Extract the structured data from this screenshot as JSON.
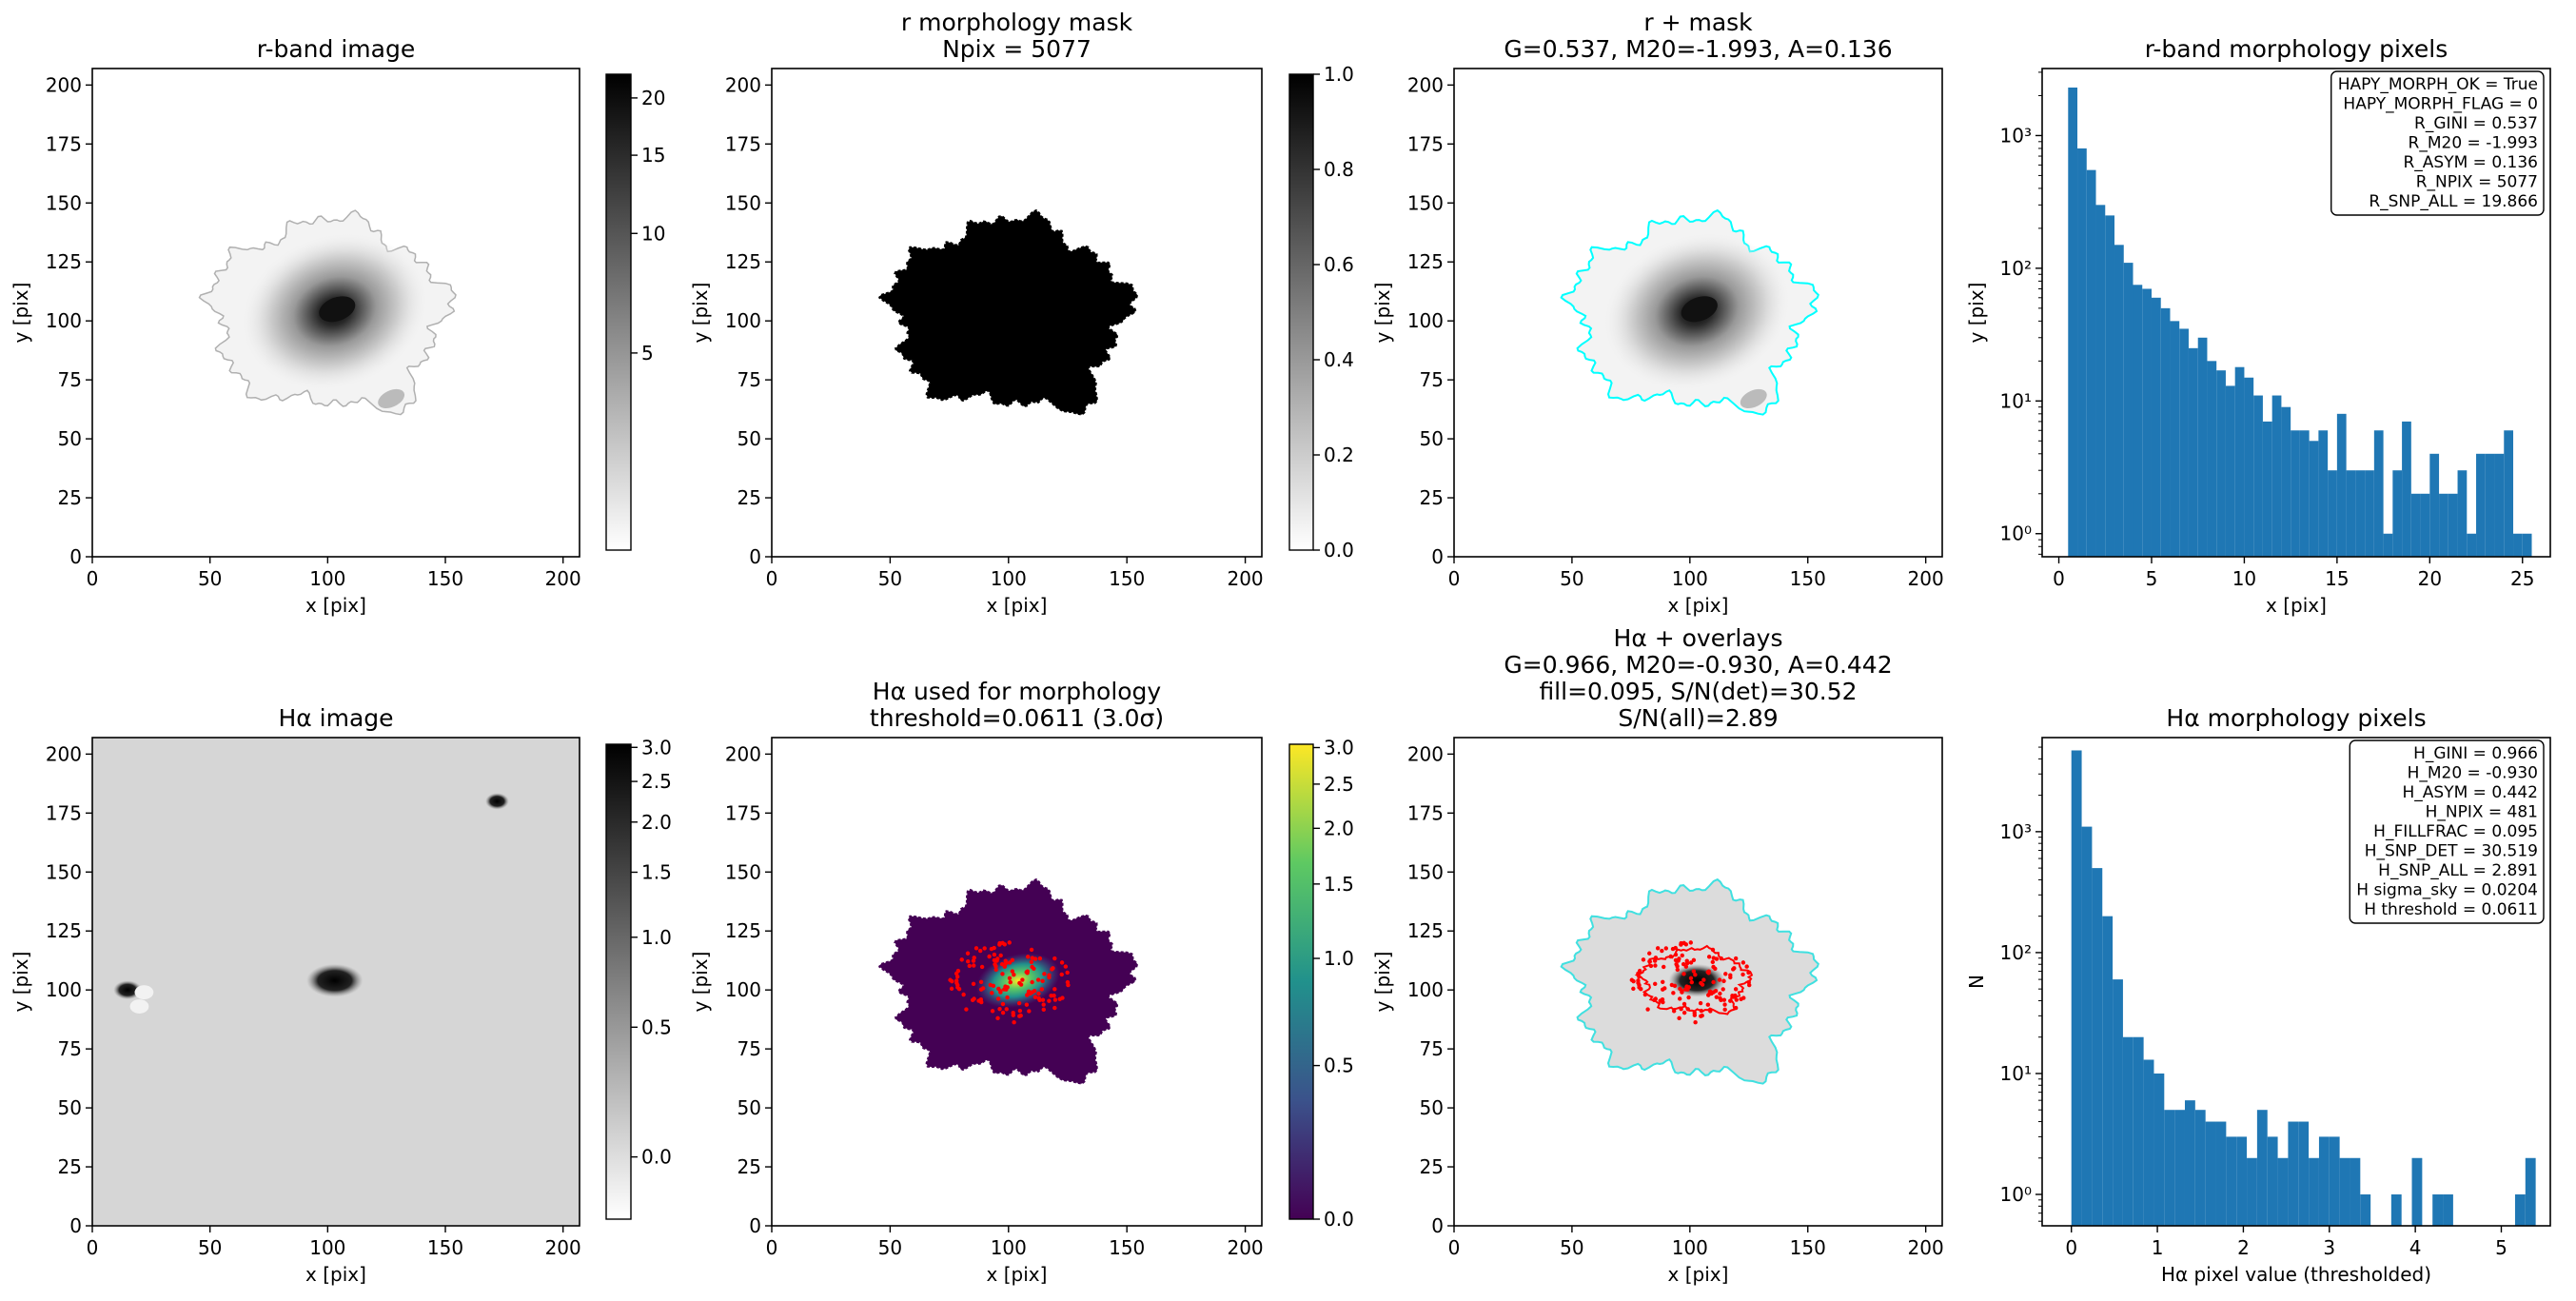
{
  "chart_data": [
    {
      "type": "image",
      "title": [
        "r-band image"
      ],
      "xlabel": "x [pix]",
      "ylabel": "y [pix]",
      "xlim": [
        0,
        207
      ],
      "ylim": [
        0,
        207
      ],
      "xticks": [
        0,
        50,
        100,
        150,
        200
      ],
      "yticks": [
        0,
        25,
        50,
        75,
        100,
        125,
        150,
        175,
        200
      ],
      "colorbar": {
        "cmap": "gray_r",
        "scale": "asinh",
        "clim": [
          0,
          22.5
        ],
        "ticks": [
          5,
          10,
          15,
          20
        ]
      }
    },
    {
      "type": "image",
      "title": [
        "r morphology mask",
        "Npix = 5077"
      ],
      "xlabel": "x [pix]",
      "ylabel": "y [pix]",
      "xlim": [
        0,
        207
      ],
      "ylim": [
        0,
        207
      ],
      "xticks": [
        0,
        50,
        100,
        150,
        200
      ],
      "yticks": [
        0,
        25,
        50,
        75,
        100,
        125,
        150,
        175,
        200
      ],
      "colorbar": {
        "cmap": "gray_r",
        "scale": "linear",
        "clim": [
          0,
          1
        ],
        "ticks": [
          {
            "value": 0,
            "label": "0.0"
          },
          0.2,
          0.4,
          0.6,
          0.8,
          {
            "value": 1,
            "label": "1.0"
          }
        ]
      }
    },
    {
      "type": "image",
      "title": [
        "r + mask",
        "G=0.537, M20=-1.993, A=0.136"
      ],
      "xlabel": "x [pix]",
      "ylabel": "y [pix]",
      "xlim": [
        0,
        207
      ],
      "ylim": [
        0,
        207
      ],
      "xticks": [
        0,
        50,
        100,
        150,
        200
      ],
      "yticks": [
        0,
        25,
        50,
        75,
        100,
        125,
        150,
        175,
        200
      ]
    },
    {
      "type": "histogram",
      "title": [
        "r-band morphology pixels"
      ],
      "xlabel": "x [pix]",
      "ylabel": "y [pix]",
      "log_y": true,
      "color": "#1f77b4",
      "bins": [
        0.5,
        1,
        1.5,
        2,
        2.5,
        3,
        3.5,
        4,
        4.5,
        5,
        5.5,
        6,
        6.5,
        7,
        7.5,
        8,
        8.5,
        9,
        9.5,
        10,
        10.5,
        11,
        11.5,
        12,
        12.5,
        13,
        13.5,
        14,
        14.5,
        15,
        15.5,
        16,
        16.5,
        17,
        17.5,
        18,
        18.5,
        19,
        19.5,
        20,
        20.5,
        21,
        21.5,
        22,
        22.5,
        23,
        23.5,
        24,
        24.5,
        25,
        25.5
      ],
      "counts": [
        2300,
        800,
        550,
        300,
        250,
        150,
        110,
        75,
        70,
        60,
        50,
        40,
        35,
        25,
        30,
        20,
        17,
        13,
        18,
        15,
        11,
        7,
        11,
        9,
        6,
        6,
        5,
        6,
        3,
        8,
        3,
        3,
        3,
        6,
        1,
        3,
        7,
        2,
        2,
        4,
        2,
        2,
        3,
        1,
        4,
        4,
        4,
        6,
        1,
        1
      ],
      "xlim": [
        -0.9,
        26.5
      ],
      "xticks": [
        0,
        5,
        10,
        15,
        20,
        25
      ],
      "ylim": [
        0.67,
        3200
      ],
      "yticks": [
        {
          "value": 1,
          "label": "10⁰"
        },
        {
          "value": 10,
          "label": "10¹"
        },
        {
          "value": 100,
          "label": "10²"
        },
        {
          "value": 1000,
          "label": "10³"
        }
      ],
      "annotations": [
        "HAPY_MORPH_OK = True",
        "HAPY_MORPH_FLAG = 0",
        "R_GINI = 0.537",
        "R_M20 = -1.993",
        "R_ASYM = 0.136",
        "R_NPIX = 5077",
        "R_SNP_ALL = 19.866"
      ]
    },
    {
      "type": "image",
      "title": [
        "Hα image"
      ],
      "xlabel": "x [pix]",
      "ylabel": "y [pix]",
      "xlim": [
        0,
        207
      ],
      "ylim": [
        0,
        207
      ],
      "xticks": [
        0,
        50,
        100,
        150,
        200
      ],
      "yticks": [
        0,
        25,
        50,
        75,
        100,
        125,
        150,
        175,
        200
      ],
      "colorbar": {
        "cmap": "gray_r",
        "scale": "asinh",
        "clim": [
          -0.2,
          3.05
        ],
        "ticks": [
          {
            "value": 0,
            "label": "0.0"
          },
          0.5,
          {
            "value": 1,
            "label": "1.0"
          },
          1.5,
          {
            "value": 2,
            "label": "2.0"
          },
          2.5,
          {
            "value": 3,
            "label": "3.0"
          }
        ]
      }
    },
    {
      "type": "image",
      "title": [
        "Hα used for morphology",
        "threshold=0.0611 (3.0σ)"
      ],
      "xlabel": "x [pix]",
      "ylabel": "y [pix]",
      "xlim": [
        0,
        207
      ],
      "ylim": [
        0,
        207
      ],
      "xticks": [
        0,
        50,
        100,
        150,
        200
      ],
      "yticks": [
        0,
        25,
        50,
        75,
        100,
        125,
        150,
        175,
        200
      ],
      "colorbar": {
        "cmap": "viridis",
        "scale": "asinh",
        "clim": [
          0,
          3.05
        ],
        "ticks": [
          {
            "value": 0,
            "label": "0.0"
          },
          0.5,
          {
            "value": 1,
            "label": "1.0"
          },
          1.5,
          {
            "value": 2,
            "label": "2.0"
          },
          2.5,
          {
            "value": 3,
            "label": "3.0"
          }
        ]
      }
    },
    {
      "type": "image",
      "title": [
        "Hα + overlays",
        "G=0.966, M20=-0.930, A=0.442",
        "fill=0.095, S/N(det)=30.52",
        "S/N(all)=2.89"
      ],
      "xlabel": "x [pix]",
      "ylabel": "y [pix]",
      "xlim": [
        0,
        207
      ],
      "ylim": [
        0,
        207
      ],
      "xticks": [
        0,
        50,
        100,
        150,
        200
      ],
      "yticks": [
        0,
        25,
        50,
        75,
        100,
        125,
        150,
        175,
        200
      ]
    },
    {
      "type": "histogram",
      "title": [
        "Hα morphology pixels"
      ],
      "xlabel": "Hα pixel value (thresholded)",
      "ylabel": "N",
      "log_y": true,
      "color": "#1f77b4",
      "bins": [
        0,
        0.12,
        0.24,
        0.36,
        0.48,
        0.6,
        0.72,
        0.84,
        0.96,
        1.08,
        1.2,
        1.32,
        1.44,
        1.56,
        1.68,
        1.8,
        1.92,
        2.04,
        2.16,
        2.28,
        2.4,
        2.52,
        2.64,
        2.76,
        2.88,
        3,
        3.12,
        3.24,
        3.36,
        3.48,
        3.6,
        3.72,
        3.84,
        3.96,
        4.08,
        4.2,
        4.32,
        4.44,
        4.56,
        4.68,
        4.8,
        4.92,
        5.04,
        5.16,
        5.28,
        5.4
      ],
      "counts": [
        4700,
        1100,
        500,
        200,
        60,
        20,
        20,
        13,
        10,
        5,
        5,
        6,
        5,
        4,
        4,
        3,
        3,
        2,
        5,
        3,
        2,
        4,
        4,
        2,
        3,
        3,
        2,
        2,
        1,
        0,
        0,
        1,
        0,
        2,
        0,
        1,
        1,
        0,
        0,
        0,
        0,
        0,
        0,
        1,
        2
      ],
      "xlim": [
        -0.34,
        5.57
      ],
      "xticks": [
        0,
        1,
        2,
        3,
        4,
        5
      ],
      "ylim": [
        0.55,
        6000
      ],
      "yticks": [
        {
          "value": 1,
          "label": "10⁰"
        },
        {
          "value": 10,
          "label": "10¹"
        },
        {
          "value": 100,
          "label": "10²"
        },
        {
          "value": 1000,
          "label": "10³"
        }
      ],
      "annotations": [
        "H_GINI = 0.966",
        "H_M20 = -0.930",
        "H_ASYM = 0.442",
        "H_NPIX = 481",
        "H_FILLFRAC = 0.095",
        "H_SNP_DET = 30.519",
        "H_SNP_ALL = 2.891",
        "H sigma_sky = 0.0204",
        "H threshold = 0.0611"
      ]
    }
  ]
}
